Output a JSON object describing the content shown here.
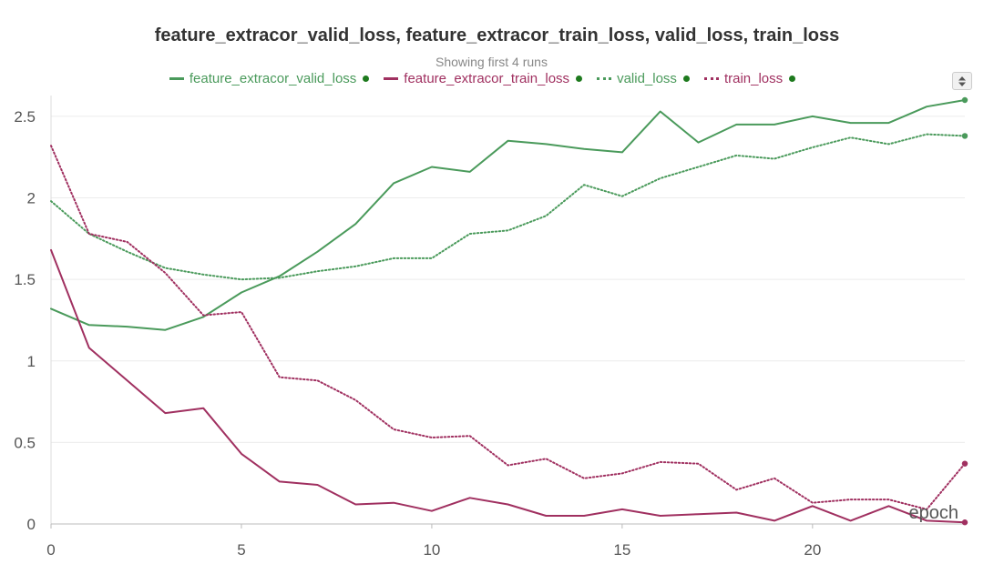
{
  "chart_data": {
    "type": "line",
    "title": "feature_extracor_valid_loss, feature_extracor_train_loss, valid_loss, train_loss",
    "subtitle": "Showing first 4 runs",
    "xlabel": "epoch",
    "ylabel": "",
    "xlim": [
      0,
      24
    ],
    "ylim": [
      0,
      2.6
    ],
    "x_ticks": [
      "0",
      "5",
      "10",
      "15",
      "20"
    ],
    "y_ticks": [
      "0",
      "0.5",
      "1",
      "1.5",
      "2",
      "2.5"
    ],
    "grid": "horizontal",
    "legend_placement": "top",
    "x": [
      0,
      1,
      2,
      3,
      4,
      5,
      6,
      7,
      8,
      9,
      10,
      11,
      12,
      13,
      14,
      15,
      16,
      17,
      18,
      19,
      20,
      21,
      22,
      23,
      24
    ],
    "series": [
      {
        "name": "feature_extracor_valid_loss",
        "color": "#4a9a5b",
        "dash": "solid",
        "run_dot_color": "#1e7a1e",
        "values": [
          1.32,
          1.22,
          1.21,
          1.19,
          1.27,
          1.42,
          1.52,
          1.67,
          1.84,
          2.09,
          2.19,
          2.16,
          2.35,
          2.33,
          2.3,
          2.28,
          2.53,
          2.34,
          2.45,
          2.45,
          2.5,
          2.46,
          2.46,
          2.56,
          2.6
        ]
      },
      {
        "name": "feature_extracor_train_loss",
        "color": "#a03060",
        "dash": "solid",
        "run_dot_color": "#1e7a1e",
        "values": [
          1.68,
          1.08,
          0.88,
          0.68,
          0.71,
          0.43,
          0.26,
          0.24,
          0.12,
          0.13,
          0.08,
          0.16,
          0.12,
          0.05,
          0.05,
          0.09,
          0.05,
          0.06,
          0.07,
          0.02,
          0.11,
          0.02,
          0.11,
          0.02,
          0.01
        ]
      },
      {
        "name": "valid_loss",
        "color": "#4a9a5b",
        "dash": "dotted",
        "run_dot_color": "#1e7a1e",
        "values": [
          1.98,
          1.78,
          1.67,
          1.57,
          1.53,
          1.5,
          1.51,
          1.55,
          1.58,
          1.63,
          1.63,
          1.78,
          1.8,
          1.89,
          2.08,
          2.01,
          2.12,
          2.19,
          2.26,
          2.24,
          2.31,
          2.37,
          2.33,
          2.39,
          2.38
        ]
      },
      {
        "name": "train_loss",
        "color": "#a03060",
        "dash": "dotted",
        "run_dot_color": "#1e7a1e",
        "values": [
          2.32,
          1.78,
          1.73,
          1.54,
          1.28,
          1.3,
          0.9,
          0.88,
          0.76,
          0.58,
          0.53,
          0.54,
          0.36,
          0.4,
          0.28,
          0.31,
          0.38,
          0.37,
          0.21,
          0.28,
          0.13,
          0.15,
          0.15,
          0.09,
          0.37
        ]
      }
    ]
  }
}
